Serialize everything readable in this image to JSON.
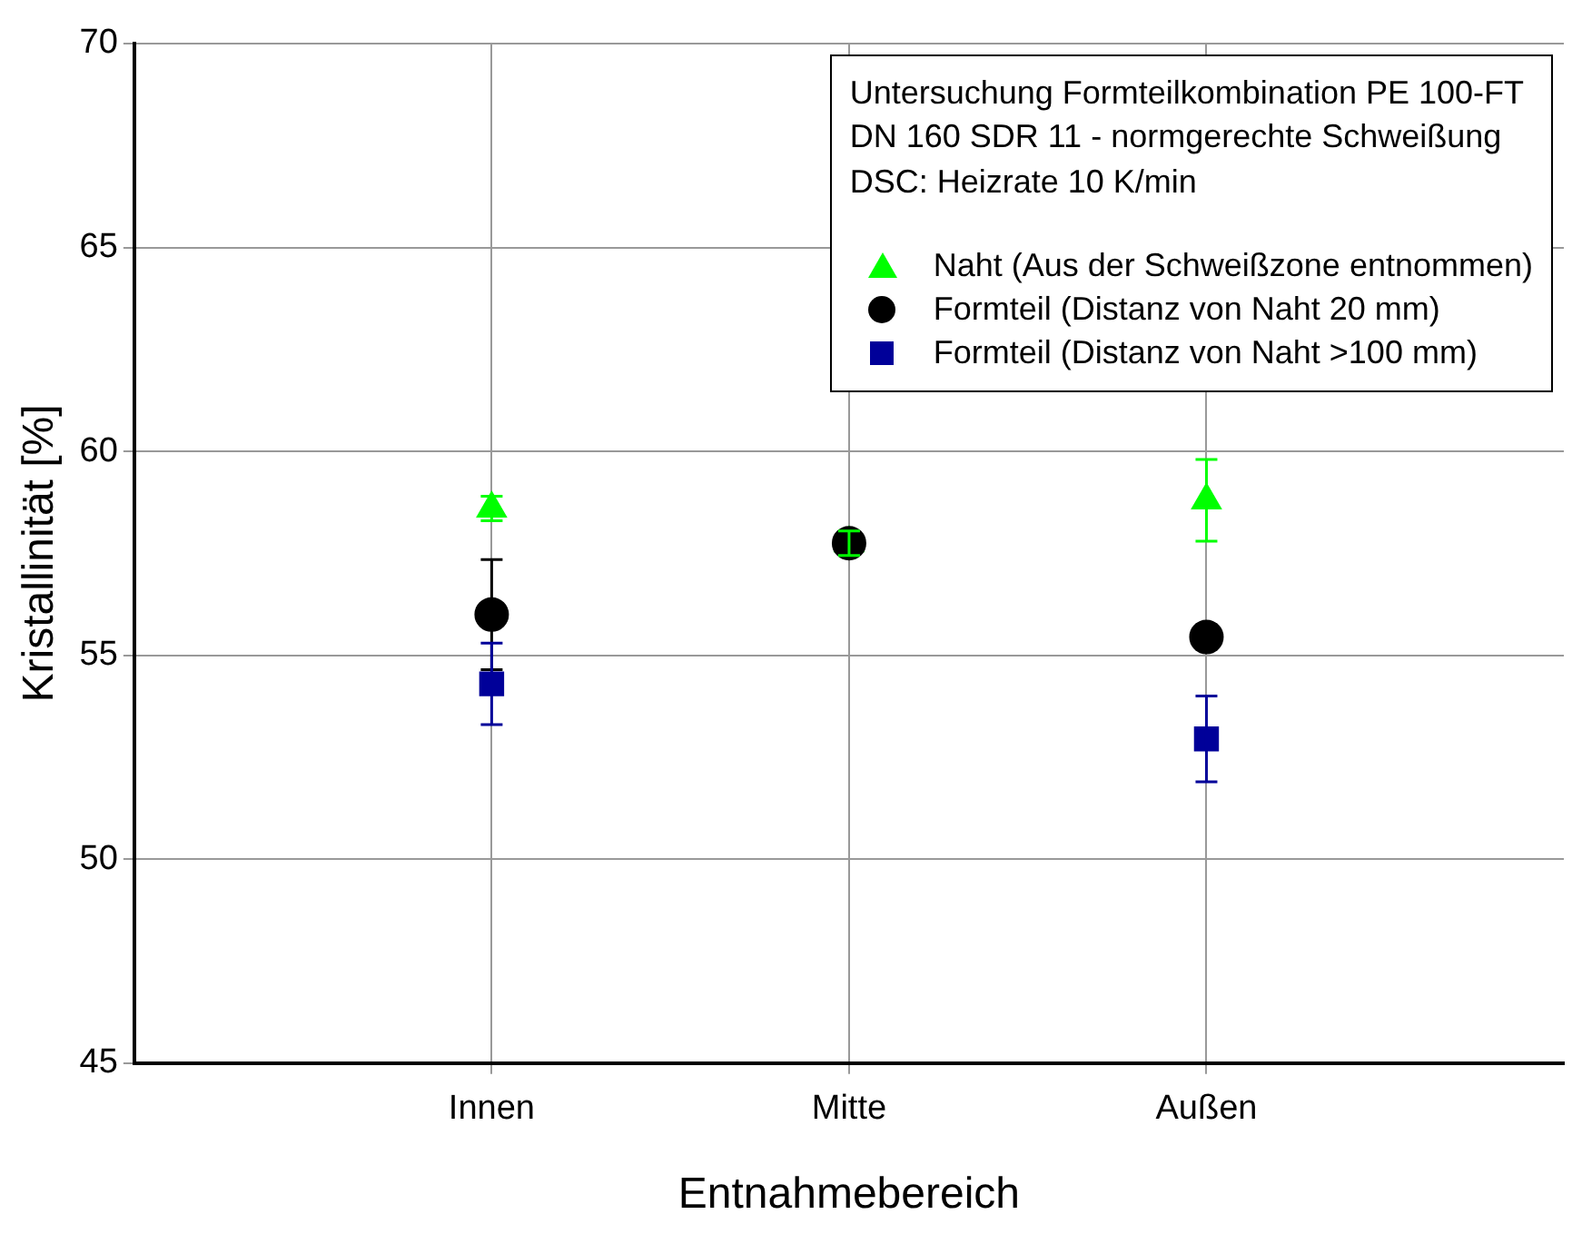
{
  "chart_data": {
    "type": "scatter",
    "xlabel": "Entnahmebereich",
    "ylabel": "Kristallinität [%]",
    "legend_title": "Untersuchung Formteilkombination PE 100-FT\nDN 160 SDR 11 - normgerechte Schweißung\nDSC: Heizrate 10 K/min",
    "categories": [
      "Innen",
      "Mitte",
      "Außen"
    ],
    "series": [
      {
        "name": "Naht (Aus der Schweißzone entnommen)",
        "color": "#00ff00",
        "marker": "triangle",
        "values": [
          58.6,
          57.75,
          58.8
        ],
        "errors": [
          0.3,
          0.3,
          1.0
        ]
      },
      {
        "name": "Formteil (Distanz von Naht 20 mm)",
        "color": "#000000",
        "marker": "circle",
        "values": [
          56.0,
          57.75,
          55.45
        ],
        "errors": [
          1.35,
          null,
          0.3
        ]
      },
      {
        "name": "Formteil (Distanz von Naht >100 mm)",
        "color": "#000099",
        "marker": "square",
        "values": [
          54.3,
          null,
          52.95
        ],
        "errors": [
          1.0,
          null,
          1.05
        ]
      }
    ],
    "ylim": [
      45,
      70
    ],
    "yticks": [
      45,
      50,
      55,
      60,
      65,
      70
    ],
    "grid": true,
    "legend": "top right"
  }
}
